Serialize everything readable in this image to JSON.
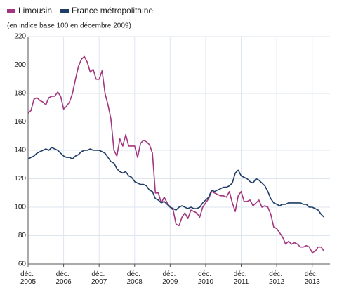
{
  "chart_data": {
    "type": "line",
    "subtitle": "(en indice base 100 en décembre 2009)",
    "x": [
      "2005-12",
      "2006-01",
      "2006-02",
      "2006-03",
      "2006-04",
      "2006-05",
      "2006-06",
      "2006-07",
      "2006-08",
      "2006-09",
      "2006-10",
      "2006-11",
      "2006-12",
      "2007-01",
      "2007-02",
      "2007-03",
      "2007-04",
      "2007-05",
      "2007-06",
      "2007-07",
      "2007-08",
      "2007-09",
      "2007-10",
      "2007-11",
      "2007-12",
      "2008-01",
      "2008-02",
      "2008-03",
      "2008-04",
      "2008-05",
      "2008-06",
      "2008-07",
      "2008-08",
      "2008-09",
      "2008-10",
      "2008-11",
      "2008-12",
      "2009-01",
      "2009-02",
      "2009-03",
      "2009-04",
      "2009-05",
      "2009-06",
      "2009-07",
      "2009-08",
      "2009-09",
      "2009-10",
      "2009-11",
      "2009-12",
      "2010-01",
      "2010-02",
      "2010-03",
      "2010-04",
      "2010-05",
      "2010-06",
      "2010-07",
      "2010-08",
      "2010-09",
      "2010-10",
      "2010-11",
      "2010-12",
      "2011-01",
      "2011-02",
      "2011-03",
      "2011-04",
      "2011-05",
      "2011-06",
      "2011-07",
      "2011-08",
      "2011-09",
      "2011-10",
      "2011-11",
      "2011-12",
      "2012-01",
      "2012-02",
      "2012-03",
      "2012-04",
      "2012-05",
      "2012-06",
      "2012-07",
      "2012-08",
      "2012-09",
      "2012-10",
      "2012-11",
      "2012-12",
      "2013-01",
      "2013-02",
      "2013-03",
      "2013-04",
      "2013-05",
      "2013-06",
      "2013-07",
      "2013-08",
      "2013-09",
      "2013-10",
      "2013-11",
      "2013-12",
      "2014-01",
      "2014-02",
      "2014-03",
      "2014-04"
    ],
    "series": [
      {
        "name": "Limousin",
        "color": "#a2367f",
        "values": [
          166,
          168,
          176,
          177,
          175,
          174,
          172,
          177,
          178,
          178,
          181,
          178,
          169,
          171,
          174,
          180,
          190,
          199,
          204,
          206,
          202,
          195,
          197,
          190,
          190,
          196,
          180,
          172,
          162,
          140,
          136,
          148,
          143,
          151,
          143,
          143,
          143,
          135,
          145,
          147,
          146,
          144,
          138,
          110,
          110,
          103,
          107,
          103,
          100,
          98,
          88,
          87,
          93,
          96,
          92,
          98,
          97,
          96,
          93,
          100,
          103,
          106,
          111,
          110,
          109,
          108,
          108,
          107,
          111,
          103,
          97,
          108,
          111,
          104,
          104,
          105,
          101,
          103,
          105,
          100,
          101,
          100,
          95,
          86,
          85,
          82,
          79,
          74,
          76,
          74,
          75,
          74,
          72,
          72,
          73,
          72,
          68,
          69,
          72,
          72,
          69
        ]
      },
      {
        "name": "France métropolitaine",
        "color": "#1f3d66",
        "values": [
          134,
          135,
          136,
          138,
          139,
          140,
          141,
          140,
          142,
          141,
          140,
          138,
          136,
          135,
          135,
          134,
          136,
          137,
          139,
          140,
          140,
          141,
          140,
          140,
          140,
          139,
          138,
          135,
          132,
          131,
          127,
          125,
          124,
          125,
          122,
          121,
          118,
          117,
          116,
          116,
          115,
          112,
          111,
          106,
          105,
          103,
          104,
          102,
          100,
          99,
          98,
          100,
          101,
          100,
          99,
          100,
          99,
          99,
          100,
          103,
          105,
          107,
          112,
          111,
          112,
          113,
          114,
          114,
          115,
          117,
          124,
          126,
          122,
          121,
          120,
          118,
          117,
          120,
          119,
          117,
          115,
          111,
          106,
          103,
          102,
          101,
          102,
          102,
          103,
          103,
          103,
          103,
          103,
          102,
          102,
          100,
          100,
          99,
          98,
          95,
          93
        ]
      }
    ],
    "xlim": [
      "2005-12",
      "2014-06"
    ],
    "xticks": [
      {
        "value": "2005-12",
        "label": "déc. 2005"
      },
      {
        "value": "2006-12",
        "label": "déc. 2006"
      },
      {
        "value": "2007-12",
        "label": "déc. 2007"
      },
      {
        "value": "2008-12",
        "label": "déc. 2008"
      },
      {
        "value": "2009-12",
        "label": "déc. 2009"
      },
      {
        "value": "2010-12",
        "label": "déc. 2010"
      },
      {
        "value": "2011-12",
        "label": "déc. 2011"
      },
      {
        "value": "2012-12",
        "label": "déc. 2012"
      },
      {
        "value": "2013-12",
        "label": "déc. 2013"
      }
    ],
    "ylim": [
      60,
      220
    ],
    "yticks": [
      60,
      80,
      100,
      120,
      140,
      160,
      180,
      200,
      220
    ],
    "grid": true
  }
}
